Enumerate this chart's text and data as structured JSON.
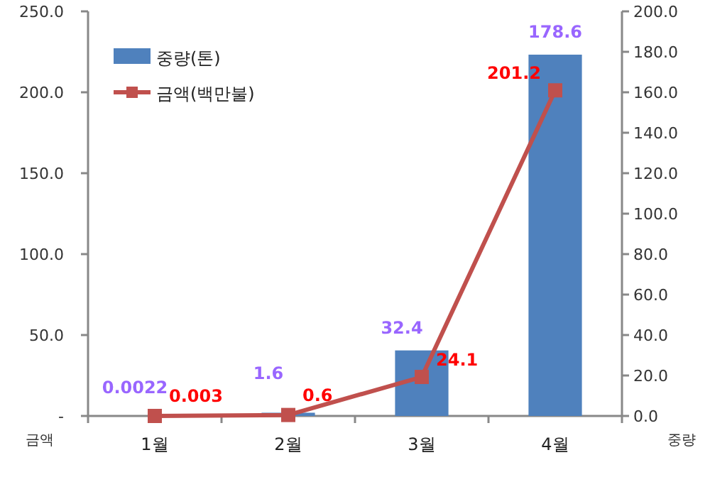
{
  "chart_data": {
    "type": "bar",
    "categories": [
      "1월",
      "2월",
      "3월",
      "4월"
    ],
    "series": [
      {
        "name": "중량(톤)",
        "axis": "y2",
        "color": "#4f81bd",
        "values": [
          0.0022,
          1.6,
          32.4,
          178.6
        ]
      },
      {
        "name": "금액(백만불)",
        "type": "line",
        "axis": "y",
        "color": "#c0504d",
        "marker": "square",
        "values": [
          0.003,
          0.6,
          24.1,
          201.2
        ]
      }
    ],
    "ylabel": "금액",
    "y2label": "중량",
    "ylim": [
      0,
      250
    ],
    "yticks": [
      {
        "value": 0,
        "label": "-"
      },
      {
        "value": 50,
        "label": "50.0"
      },
      {
        "value": 100,
        "label": "100.0"
      },
      {
        "value": 150,
        "label": "150.0"
      },
      {
        "value": 200,
        "label": "200.0"
      },
      {
        "value": 250,
        "label": "250.0"
      }
    ],
    "y2lim": [
      0,
      200
    ],
    "y2ticks": [
      {
        "value": 0,
        "label": "0.0"
      },
      {
        "value": 20,
        "label": "20.0"
      },
      {
        "value": 40,
        "label": "40.0"
      },
      {
        "value": 60,
        "label": "60.0"
      },
      {
        "value": 80,
        "label": "80.0"
      },
      {
        "value": 100,
        "label": "100.0"
      },
      {
        "value": 120,
        "label": "120.0"
      },
      {
        "value": 140,
        "label": "140.0"
      },
      {
        "value": 160,
        "label": "160.0"
      },
      {
        "value": 180,
        "label": "180.0"
      },
      {
        "value": 200,
        "label": "200.0"
      }
    ],
    "data_labels": true,
    "legend": "top left",
    "grid": false
  }
}
